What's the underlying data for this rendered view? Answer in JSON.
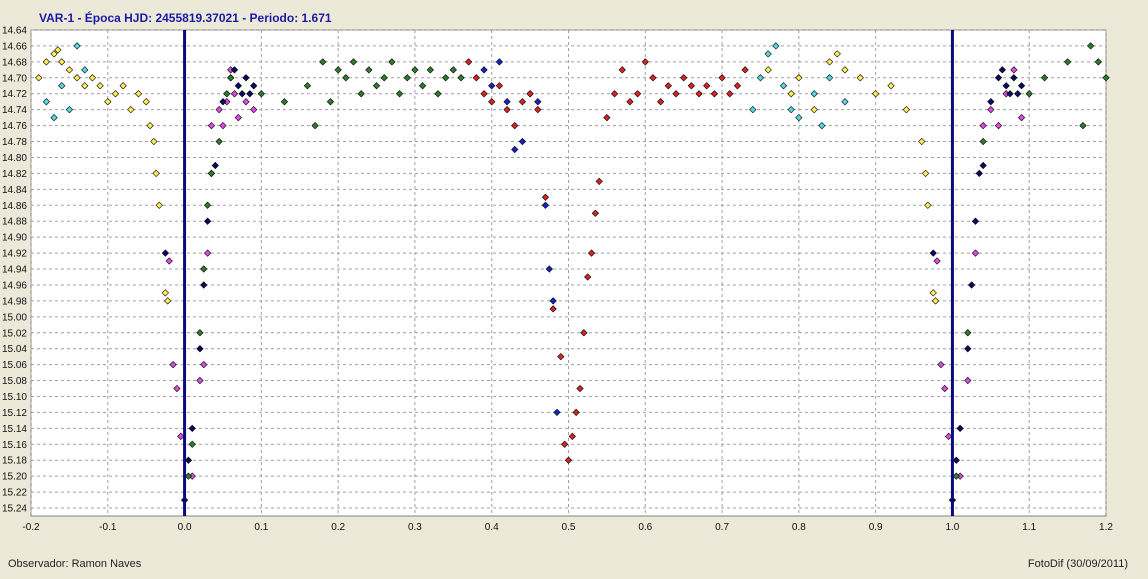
{
  "header": {
    "title": "VAR-1  -  Época HJD: 2455819.37021  -  Periodo: 1.671"
  },
  "footer": {
    "observer": "Observador: Ramon Naves",
    "software": "FotoDif (30/09/2011)"
  },
  "colors": {
    "background": "#ece9d8",
    "plot_background": "#ffffff",
    "grid": "#a0a0a0",
    "marker_line": "#0a0a7a",
    "title": "#1a1aa8"
  },
  "chart_data": {
    "type": "scatter",
    "title": "VAR-1  -  Época HJD: 2455819.37021  -  Periodo: 1.671",
    "xlabel": "",
    "ylabel": "",
    "xlim": [
      -0.2,
      1.2
    ],
    "ylim": [
      14.64,
      15.25
    ],
    "y_inverted": true,
    "grid": true,
    "x_ticks": [
      "-0.2",
      "-0.1",
      "0.0",
      "0.1",
      "0.2",
      "0.3",
      "0.4",
      "0.5",
      "0.6",
      "0.7",
      "0.8",
      "0.9",
      "1.0",
      "1.1",
      "1.2"
    ],
    "y_ticks": [
      "14.64",
      "14.66",
      "14.68",
      "14.70",
      "14.72",
      "14.74",
      "14.76",
      "14.78",
      "14.80",
      "14.82",
      "14.84",
      "14.86",
      "14.88",
      "14.90",
      "14.92",
      "14.94",
      "14.96",
      "14.98",
      "15.00",
      "15.02",
      "15.04",
      "15.06",
      "15.08",
      "15.10",
      "15.12",
      "15.14",
      "15.16",
      "15.18",
      "15.20",
      "15.22",
      "15.24"
    ],
    "vertical_lines": [
      0.0,
      1.0
    ],
    "series": [
      {
        "color": "#ffee55",
        "points": [
          [
            -0.19,
            14.7
          ],
          [
            -0.18,
            14.68
          ],
          [
            -0.17,
            14.67
          ],
          [
            -0.165,
            14.665
          ],
          [
            -0.16,
            14.68
          ],
          [
            -0.15,
            14.69
          ],
          [
            -0.14,
            14.7
          ],
          [
            -0.13,
            14.71
          ],
          [
            -0.12,
            14.7
          ],
          [
            -0.11,
            14.71
          ],
          [
            -0.1,
            14.73
          ],
          [
            -0.09,
            14.72
          ],
          [
            -0.08,
            14.71
          ],
          [
            -0.07,
            14.74
          ],
          [
            -0.06,
            14.72
          ],
          [
            -0.05,
            14.73
          ],
          [
            -0.045,
            14.76
          ],
          [
            -0.04,
            14.78
          ],
          [
            -0.037,
            14.82
          ],
          [
            -0.033,
            14.86
          ],
          [
            -0.025,
            14.97
          ],
          [
            -0.022,
            14.98
          ],
          [
            0.76,
            14.69
          ],
          [
            0.79,
            14.72
          ],
          [
            0.8,
            14.7
          ],
          [
            0.82,
            14.74
          ],
          [
            0.84,
            14.68
          ],
          [
            0.85,
            14.67
          ],
          [
            0.86,
            14.69
          ],
          [
            0.88,
            14.7
          ],
          [
            0.9,
            14.72
          ],
          [
            0.92,
            14.71
          ],
          [
            0.94,
            14.74
          ],
          [
            0.96,
            14.78
          ],
          [
            0.965,
            14.82
          ],
          [
            0.968,
            14.86
          ],
          [
            0.975,
            14.97
          ],
          [
            0.978,
            14.98
          ]
        ]
      },
      {
        "color": "#55d8e0",
        "points": [
          [
            -0.18,
            14.73
          ],
          [
            -0.17,
            14.75
          ],
          [
            -0.16,
            14.71
          ],
          [
            -0.15,
            14.74
          ],
          [
            -0.14,
            14.66
          ],
          [
            -0.13,
            14.69
          ],
          [
            0.74,
            14.74
          ],
          [
            0.75,
            14.7
          ],
          [
            0.76,
            14.67
          ],
          [
            0.77,
            14.66
          ],
          [
            0.78,
            14.71
          ],
          [
            0.79,
            14.74
          ],
          [
            0.8,
            14.75
          ],
          [
            0.82,
            14.72
          ],
          [
            0.83,
            14.76
          ],
          [
            0.84,
            14.7
          ],
          [
            0.86,
            14.73
          ]
        ]
      },
      {
        "color": "#e048e0",
        "points": [
          [
            -0.02,
            14.93
          ],
          [
            -0.015,
            15.06
          ],
          [
            -0.01,
            15.09
          ],
          [
            -0.005,
            15.15
          ],
          [
            0.01,
            15.2
          ],
          [
            0.02,
            15.08
          ],
          [
            0.025,
            15.06
          ],
          [
            0.03,
            14.92
          ],
          [
            0.035,
            14.76
          ],
          [
            0.045,
            14.74
          ],
          [
            0.05,
            14.76
          ],
          [
            0.055,
            14.73
          ],
          [
            0.06,
            14.69
          ],
          [
            0.065,
            14.72
          ],
          [
            0.07,
            14.75
          ],
          [
            0.08,
            14.73
          ],
          [
            0.09,
            14.74
          ],
          [
            0.98,
            14.93
          ],
          [
            0.985,
            15.06
          ],
          [
            0.99,
            15.09
          ],
          [
            0.995,
            15.15
          ],
          [
            1.01,
            15.2
          ],
          [
            1.02,
            15.08
          ],
          [
            1.03,
            14.92
          ],
          [
            1.04,
            14.76
          ],
          [
            1.05,
            14.74
          ],
          [
            1.06,
            14.76
          ],
          [
            1.07,
            14.72
          ],
          [
            1.08,
            14.69
          ],
          [
            1.09,
            14.75
          ]
        ]
      },
      {
        "color": "#0a0a60",
        "points": [
          [
            -0.025,
            14.92
          ],
          [
            0.0,
            15.23
          ],
          [
            0.005,
            15.18
          ],
          [
            0.01,
            15.14
          ],
          [
            0.02,
            15.04
          ],
          [
            0.025,
            14.96
          ],
          [
            0.03,
            14.88
          ],
          [
            0.035,
            14.82
          ],
          [
            0.04,
            14.81
          ],
          [
            0.05,
            14.73
          ],
          [
            0.06,
            14.7
          ],
          [
            0.065,
            14.69
          ],
          [
            0.07,
            14.71
          ],
          [
            0.075,
            14.72
          ],
          [
            0.08,
            14.7
          ],
          [
            0.085,
            14.72
          ],
          [
            0.09,
            14.71
          ],
          [
            0.975,
            14.92
          ],
          [
            1.0,
            15.23
          ],
          [
            1.005,
            15.18
          ],
          [
            1.01,
            15.14
          ],
          [
            1.02,
            15.04
          ],
          [
            1.025,
            14.96
          ],
          [
            1.03,
            14.88
          ],
          [
            1.035,
            14.82
          ],
          [
            1.04,
            14.81
          ],
          [
            1.05,
            14.73
          ],
          [
            1.06,
            14.7
          ],
          [
            1.065,
            14.69
          ],
          [
            1.07,
            14.71
          ],
          [
            1.075,
            14.72
          ],
          [
            1.08,
            14.7
          ],
          [
            1.085,
            14.72
          ],
          [
            1.09,
            14.71
          ]
        ]
      },
      {
        "color": "#2e7d2e",
        "points": [
          [
            0.005,
            15.2
          ],
          [
            0.01,
            15.16
          ],
          [
            0.02,
            15.02
          ],
          [
            0.025,
            14.94
          ],
          [
            0.03,
            14.86
          ],
          [
            0.035,
            14.82
          ],
          [
            0.045,
            14.78
          ],
          [
            0.055,
            14.72
          ],
          [
            0.06,
            14.7
          ],
          [
            0.1,
            14.72
          ],
          [
            0.13,
            14.73
          ],
          [
            0.16,
            14.71
          ],
          [
            0.17,
            14.76
          ],
          [
            0.18,
            14.68
          ],
          [
            0.19,
            14.73
          ],
          [
            0.2,
            14.69
          ],
          [
            0.21,
            14.7
          ],
          [
            0.22,
            14.68
          ],
          [
            0.23,
            14.72
          ],
          [
            0.24,
            14.69
          ],
          [
            0.25,
            14.71
          ],
          [
            0.26,
            14.7
          ],
          [
            0.27,
            14.68
          ],
          [
            0.28,
            14.72
          ],
          [
            0.29,
            14.7
          ],
          [
            0.3,
            14.69
          ],
          [
            0.31,
            14.71
          ],
          [
            0.32,
            14.69
          ],
          [
            0.33,
            14.72
          ],
          [
            0.34,
            14.7
          ],
          [
            0.35,
            14.69
          ],
          [
            0.36,
            14.7
          ],
          [
            1.005,
            15.2
          ],
          [
            1.02,
            15.02
          ],
          [
            1.04,
            14.78
          ],
          [
            1.1,
            14.72
          ],
          [
            1.12,
            14.7
          ],
          [
            1.15,
            14.68
          ],
          [
            1.17,
            14.76
          ],
          [
            1.18,
            14.66
          ],
          [
            1.19,
            14.68
          ],
          [
            1.2,
            14.7
          ]
        ]
      },
      {
        "color": "#1a22cc",
        "points": [
          [
            0.39,
            14.69
          ],
          [
            0.4,
            14.71
          ],
          [
            0.41,
            14.68
          ],
          [
            0.42,
            14.73
          ],
          [
            0.43,
            14.79
          ],
          [
            0.44,
            14.78
          ],
          [
            0.45,
            14.72
          ],
          [
            0.46,
            14.73
          ],
          [
            0.47,
            14.86
          ],
          [
            0.475,
            14.94
          ],
          [
            0.48,
            14.98
          ],
          [
            0.485,
            15.12
          ]
        ]
      },
      {
        "color": "#dd2222",
        "points": [
          [
            0.37,
            14.68
          ],
          [
            0.38,
            14.7
          ],
          [
            0.39,
            14.72
          ],
          [
            0.4,
            14.73
          ],
          [
            0.41,
            14.71
          ],
          [
            0.42,
            14.74
          ],
          [
            0.43,
            14.76
          ],
          [
            0.44,
            14.73
          ],
          [
            0.45,
            14.72
          ],
          [
            0.46,
            14.74
          ],
          [
            0.47,
            14.85
          ],
          [
            0.48,
            14.99
          ],
          [
            0.49,
            15.05
          ],
          [
            0.495,
            15.16
          ],
          [
            0.5,
            15.18
          ],
          [
            0.505,
            15.15
          ],
          [
            0.51,
            15.12
          ],
          [
            0.515,
            15.09
          ],
          [
            0.52,
            15.02
          ],
          [
            0.525,
            14.95
          ],
          [
            0.53,
            14.92
          ],
          [
            0.535,
            14.87
          ],
          [
            0.54,
            14.83
          ],
          [
            0.55,
            14.75
          ],
          [
            0.56,
            14.72
          ],
          [
            0.57,
            14.69
          ],
          [
            0.58,
            14.73
          ],
          [
            0.59,
            14.72
          ],
          [
            0.6,
            14.68
          ],
          [
            0.61,
            14.7
          ],
          [
            0.62,
            14.73
          ],
          [
            0.63,
            14.71
          ],
          [
            0.64,
            14.72
          ],
          [
            0.65,
            14.7
          ],
          [
            0.66,
            14.71
          ],
          [
            0.67,
            14.72
          ],
          [
            0.68,
            14.71
          ],
          [
            0.69,
            14.72
          ],
          [
            0.7,
            14.7
          ],
          [
            0.71,
            14.72
          ],
          [
            0.72,
            14.71
          ],
          [
            0.73,
            14.69
          ]
        ]
      }
    ]
  }
}
